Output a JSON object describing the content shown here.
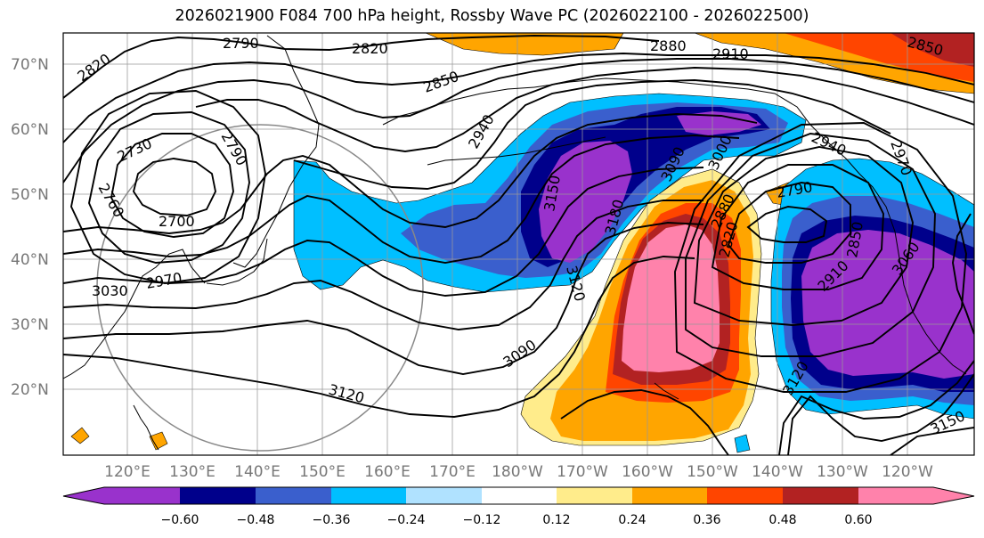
{
  "title": "2026021900 F084 700 hPa height, Rossby Wave PC (2026022100 - 2026022500)",
  "map": {
    "lat_labels": [
      "70°N",
      "60°N",
      "50°N",
      "40°N",
      "30°N",
      "20°N"
    ],
    "lon_labels": [
      "120°E",
      "130°E",
      "140°E",
      "150°E",
      "160°E",
      "170°E",
      "180°W",
      "170°W",
      "160°W",
      "150°W",
      "140°W",
      "130°W",
      "120°W"
    ],
    "contour_labels": {
      "c2790a": "2790",
      "c2820a": "2820",
      "c2820b": "2820",
      "c2880": "2880",
      "c2910": "2910",
      "c2850a": "2850",
      "c2850tr": "2850",
      "c2940a": "2940",
      "c2730": "2730",
      "c2790b": "2790",
      "c2760": "2760",
      "c2700": "2700",
      "c3030": "3030",
      "c2970": "2970",
      "c3150a": "3150",
      "c3180": "3180",
      "c3090a": "3090",
      "c3120a": "3120",
      "c3000": "3000",
      "c3090b": "3090",
      "c3120b": "3120",
      "c2880b": "2880",
      "c2820c": "2820",
      "c2790c": "2790",
      "c2940b": "2940",
      "c2970b": "2970",
      "c2850b": "2850",
      "c2910b": "2910",
      "c3060": "3060",
      "c3120c": "3120",
      "c3150b": "3150"
    }
  },
  "colorbar": {
    "colors": [
      "#9932cc",
      "#00008b",
      "#3a5fcd",
      "#00bfff",
      "#b0e2ff",
      "#ffffff",
      "#ffec8b",
      "#ffa500",
      "#ff4500",
      "#b22222",
      "#ff82ab"
    ],
    "tick_labels": [
      "−0.60",
      "−0.48",
      "−0.36",
      "−0.24",
      "−0.12",
      "0.12",
      "0.24",
      "0.36",
      "0.48",
      "0.60"
    ]
  }
}
